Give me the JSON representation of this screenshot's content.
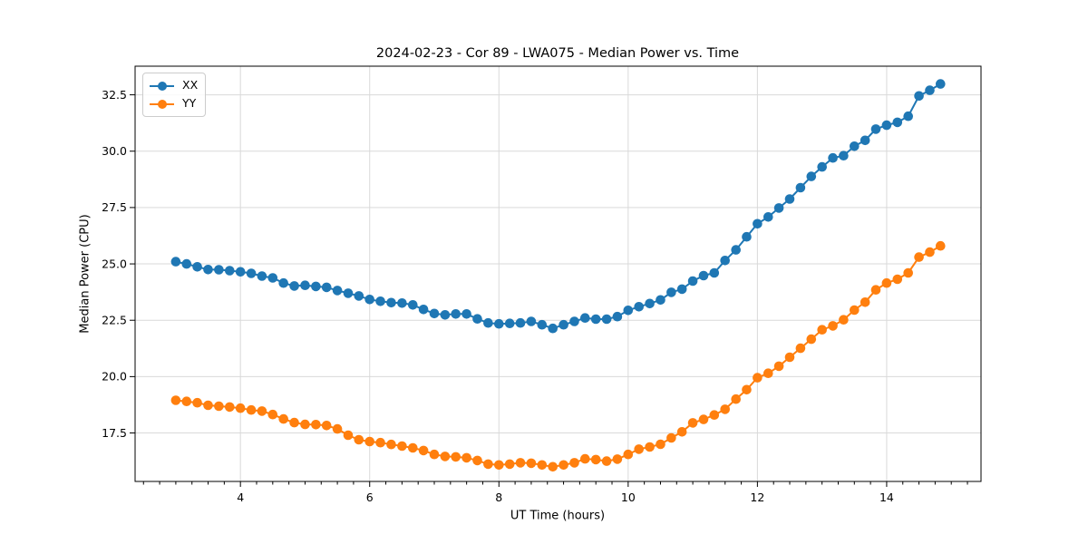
{
  "chart_data": {
    "type": "line",
    "title": "2024-02-23 - Cor 89 - LWA075 - Median Power vs. Time",
    "xlabel": "UT Time (hours)",
    "ylabel": "Median Power (CPU)",
    "xlim": [
      2.37,
      15.46
    ],
    "ylim": [
      15.35,
      33.77
    ],
    "xticks": [
      4,
      6,
      8,
      10,
      12,
      14
    ],
    "x_minor_step": 0.25,
    "yticks": [
      17.5,
      20.0,
      22.5,
      25.0,
      27.5,
      30.0,
      32.5
    ],
    "grid": true,
    "legend_position": "upper-left",
    "colors": {
      "xx": "#1f77b4",
      "yy": "#ff7f0e",
      "grid": "#d9d9d9",
      "frame": "#000000"
    },
    "x": [
      3.0,
      3.167,
      3.333,
      3.5,
      3.667,
      3.833,
      4.0,
      4.167,
      4.333,
      4.5,
      4.667,
      4.833,
      5.0,
      5.167,
      5.333,
      5.5,
      5.667,
      5.833,
      6.0,
      6.167,
      6.333,
      6.5,
      6.667,
      6.833,
      7.0,
      7.167,
      7.333,
      7.5,
      7.667,
      7.833,
      8.0,
      8.167,
      8.333,
      8.5,
      8.667,
      8.833,
      9.0,
      9.167,
      9.333,
      9.5,
      9.667,
      9.833,
      10.0,
      10.167,
      10.333,
      10.5,
      10.667,
      10.833,
      11.0,
      11.167,
      11.333,
      11.5,
      11.667,
      11.833,
      12.0,
      12.167,
      12.333,
      12.5,
      12.667,
      12.833,
      13.0,
      13.167,
      13.333,
      13.5,
      13.667,
      13.833,
      14.0,
      14.167,
      14.333,
      14.5,
      14.667,
      14.833
    ],
    "series": [
      {
        "name": "XX",
        "color_key": "xx",
        "values": [
          25.1,
          25.0,
          24.87,
          24.75,
          24.74,
          24.7,
          24.65,
          24.58,
          24.46,
          24.38,
          24.15,
          24.02,
          24.05,
          24.0,
          23.96,
          23.82,
          23.7,
          23.58,
          23.42,
          23.34,
          23.28,
          23.26,
          23.18,
          22.98,
          22.8,
          22.74,
          22.78,
          22.78,
          22.56,
          22.38,
          22.34,
          22.36,
          22.38,
          22.45,
          22.3,
          22.14,
          22.3,
          22.45,
          22.6,
          22.55,
          22.55,
          22.66,
          22.94,
          23.1,
          23.24,
          23.4,
          23.74,
          23.88,
          24.24,
          24.48,
          24.6,
          25.15,
          25.62,
          26.2,
          26.78,
          27.08,
          27.48,
          27.88,
          28.38,
          28.88,
          29.3,
          29.7,
          29.8,
          30.22,
          30.48,
          30.98,
          31.15,
          31.28,
          31.55,
          32.45,
          32.7,
          32.98
        ]
      },
      {
        "name": "YY",
        "color_key": "yy",
        "values": [
          18.95,
          18.9,
          18.84,
          18.73,
          18.69,
          18.65,
          18.6,
          18.52,
          18.47,
          18.32,
          18.12,
          17.96,
          17.88,
          17.87,
          17.83,
          17.68,
          17.4,
          17.2,
          17.12,
          17.07,
          16.99,
          16.92,
          16.84,
          16.72,
          16.55,
          16.46,
          16.44,
          16.4,
          16.28,
          16.12,
          16.08,
          16.12,
          16.18,
          16.16,
          16.08,
          16.0,
          16.08,
          16.18,
          16.35,
          16.32,
          16.25,
          16.34,
          16.55,
          16.78,
          16.88,
          17.0,
          17.28,
          17.55,
          17.95,
          18.1,
          18.3,
          18.55,
          19.0,
          19.42,
          19.95,
          20.15,
          20.46,
          20.86,
          21.26,
          21.66,
          22.08,
          22.25,
          22.52,
          22.95,
          23.3,
          23.85,
          24.15,
          24.32,
          24.6,
          25.3,
          25.52,
          25.8
        ]
      }
    ]
  }
}
